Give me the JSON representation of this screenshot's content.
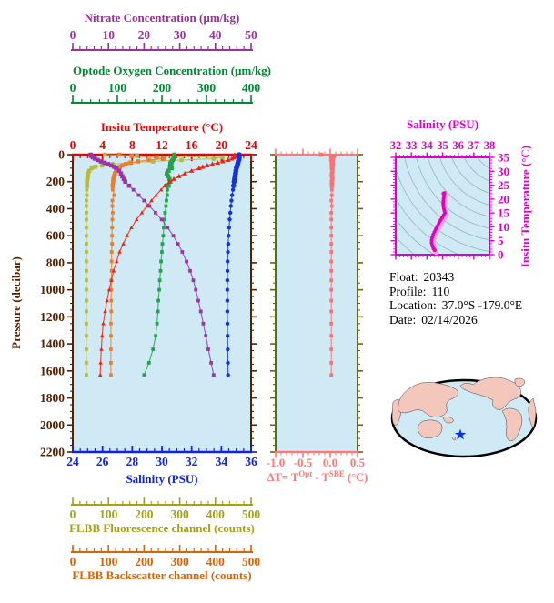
{
  "page": {
    "background": "#ffffff",
    "plot_background": "#cfe9f5"
  },
  "float_info": {
    "lines": [
      {
        "label": "Float:",
        "value": "20343"
      },
      {
        "label": "Profile:",
        "value": "110"
      },
      {
        "label": "Location:",
        "value": "37.0°S -179.0°E"
      },
      {
        "label": "Date:",
        "value": "02/14/2026"
      }
    ]
  },
  "axes": {
    "nitrate": {
      "title": "Nitrate Concentration (µm/kg)",
      "color": "#993399",
      "min": 0,
      "max": 50,
      "ticks": [
        0,
        10,
        20,
        30,
        40,
        50
      ],
      "minor_step": 2
    },
    "oxygen": {
      "title": "Optode Oxygen Concentration (µm/kg)",
      "color": "#008833",
      "min": 0,
      "max": 400,
      "ticks": [
        0,
        100,
        200,
        300,
        400
      ],
      "minor_step": 20
    },
    "temperature": {
      "title": "Insitu Temperature (°C)",
      "color": "#ee0000",
      "min": 0,
      "max": 24,
      "ticks": [
        0,
        4,
        8,
        12,
        16,
        20,
        24
      ],
      "minor_step": 1
    },
    "pressure": {
      "title": "Pressure (decibar)",
      "color": "#552200",
      "min": 0,
      "max": 2200,
      "ticks": [
        0,
        200,
        400,
        600,
        800,
        1000,
        1200,
        1400,
        1600,
        1800,
        2000,
        2200
      ],
      "minor_step": 50
    },
    "salinity": {
      "title": "Salinity (PSU)",
      "color": "#1122ee",
      "min": 24,
      "max": 36,
      "ticks": [
        24,
        26,
        28,
        30,
        32,
        34,
        36
      ],
      "minor_step": 0.5
    },
    "fluorescence": {
      "title": "FLBB Fluorescence channel (counts)",
      "color": "#a3a316",
      "min": 0,
      "max": 500,
      "ticks": [
        0,
        100,
        200,
        300,
        400,
        500
      ],
      "minor_step": 20
    },
    "backscatter": {
      "title": "FLBB Backscatter channel (counts)",
      "color": "#dd6200",
      "min": 0,
      "max": 500,
      "ticks": [
        0,
        100,
        200,
        300,
        400,
        500
      ],
      "minor_step": 20
    },
    "delta_t": {
      "title_pre": "ΔT= T",
      "title_sup1": "Opt",
      "title_mid": " - T",
      "title_sup2": "SBE",
      "title_post": " (°C)",
      "color": "#ff7777",
      "min": -1.0,
      "max": 0.5,
      "ticks": [
        {
          "v": -1.0,
          "l": "-1.0"
        },
        {
          "v": -0.5,
          "l": "-0.5"
        },
        {
          "v": 0.0,
          "l": "0.0"
        },
        {
          "v": 0.5,
          "l": "0.5"
        }
      ],
      "minor_step": 0.1,
      "frame_color": "#5e6b10"
    },
    "ts_salinity": {
      "title": "Salinity (PSU)",
      "color": "#dd00cc",
      "min": 32,
      "max": 38,
      "ticks": [
        32,
        33,
        34,
        35,
        36,
        37,
        38
      ],
      "minor_step": 0.25
    },
    "ts_temperature": {
      "title": "Insitu Temperature (°C)",
      "color": "#dd00cc",
      "min": 0,
      "max": 35,
      "ticks": [
        0,
        5,
        10,
        15,
        20,
        25,
        30,
        35
      ],
      "minor_step": 1
    }
  },
  "chart_data": [
    {
      "id": "main-profile-plot",
      "type": "line",
      "orientation": "vertical-profile",
      "ylabel": "Pressure (decibar)",
      "ylim": [
        0,
        2200
      ],
      "grid": false,
      "pressures": [
        0,
        10,
        20,
        30,
        40,
        50,
        60,
        70,
        80,
        90,
        100,
        120,
        140,
        160,
        180,
        200,
        230,
        260,
        300,
        340,
        380,
        430,
        480,
        540,
        600,
        660,
        720,
        790,
        860,
        930,
        1000,
        1080,
        1160,
        1250,
        1340,
        1440,
        1540,
        1630
      ],
      "series": [
        {
          "name": "FLBB Fluorescence channel (counts)",
          "color": "#b9b93e",
          "marker": "square",
          "xmin": 0,
          "xmax": 500,
          "values": [
            90,
            180,
            420,
            395,
            305,
            225,
            160,
            112,
            82,
            63,
            53,
            46,
            43,
            42,
            41,
            40,
            40,
            39,
            39,
            38,
            38,
            38,
            38,
            38,
            38,
            38,
            38,
            38,
            38,
            38,
            38,
            38,
            38,
            38,
            38,
            38,
            38,
            38
          ]
        },
        {
          "name": "FLBB Backscatter channel (counts)",
          "color": "#ee7d2a",
          "marker": "square",
          "xmin": 0,
          "xmax": 500,
          "values": [
            130,
            165,
            235,
            255,
            213,
            183,
            163,
            149,
            139,
            132,
            127,
            121,
            118,
            116,
            114,
            113,
            112,
            112,
            116,
            111,
            111,
            112,
            111,
            110,
            110,
            110,
            109,
            109,
            109,
            108,
            108,
            108,
            108,
            107,
            107,
            107,
            107,
            107
          ]
        },
        {
          "name": "Optode Oxygen Concentration (µm/kg)",
          "color": "#23a34b",
          "marker": "square",
          "xmin": 0,
          "xmax": 400,
          "values": [
            228,
            228,
            227,
            226,
            224,
            222,
            220,
            219,
            221,
            218,
            222,
            215,
            211,
            214,
            217,
            219,
            215,
            212,
            212,
            210,
            209,
            207,
            206,
            204,
            203,
            201,
            200,
            198,
            197,
            195,
            194,
            192,
            191,
            189,
            186,
            180,
            171,
            160
          ]
        },
        {
          "name": "Nitrate Concentration (µm/kg)",
          "color": "#9a35a8",
          "marker": "square",
          "xmin": 0,
          "xmax": 50,
          "values": [
            5.0,
            5.2,
            5.6,
            6.2,
            7.0,
            7.9,
            8.9,
            9.9,
            10.8,
            11.6,
            12.2,
            13.0,
            13.5,
            13.9,
            14.3,
            14.7,
            15.8,
            17.0,
            18.5,
            20.0,
            21.5,
            23.2,
            24.9,
            26.6,
            28.2,
            29.5,
            30.7,
            31.9,
            32.9,
            33.8,
            34.5,
            35.2,
            35.9,
            36.6,
            37.3,
            38.0,
            38.8,
            39.5
          ]
        },
        {
          "name": "Insitu Temperature (°C)",
          "color": "#ee2211",
          "marker": "triangle",
          "xmin": 0,
          "xmax": 24,
          "values": [
            21.8,
            21.8,
            21.7,
            21.4,
            20.9,
            20.2,
            19.5,
            18.8,
            18.1,
            17.5,
            17.0,
            16.0,
            15.1,
            14.3,
            13.6,
            13.0,
            12.4,
            11.9,
            11.2,
            10.6,
            10.0,
            9.3,
            8.6,
            7.9,
            7.3,
            6.8,
            6.3,
            5.9,
            5.5,
            5.2,
            4.9,
            4.6,
            4.35,
            4.1,
            3.95,
            3.85,
            3.75,
            3.7
          ]
        },
        {
          "name": "Salinity (PSU)",
          "color": "#1530e8",
          "marker": "circle",
          "xmin": 24,
          "xmax": 36,
          "values": [
            35.2,
            35.2,
            35.2,
            35.19,
            35.17,
            35.14,
            35.12,
            35.1,
            35.07,
            35.04,
            35.01,
            34.98,
            34.95,
            34.92,
            34.89,
            34.86,
            34.82,
            34.78,
            34.72,
            34.68,
            34.64,
            34.6,
            34.56,
            34.52,
            34.49,
            34.46,
            34.44,
            34.42,
            34.41,
            34.4,
            34.4,
            34.4,
            34.4,
            34.41,
            34.42,
            34.43,
            34.44,
            34.45
          ]
        }
      ]
    },
    {
      "id": "delta-t-plot",
      "type": "line",
      "xlim": [
        -1.0,
        0.5
      ],
      "ylim": [
        0,
        2200
      ],
      "pressures": [
        0,
        10,
        20,
        30,
        40,
        50,
        60,
        70,
        80,
        90,
        100,
        120,
        140,
        160,
        180,
        200,
        230,
        260,
        300,
        340,
        380,
        430,
        480,
        540,
        600,
        660,
        720,
        790,
        860,
        930,
        1000,
        1080,
        1160,
        1250,
        1340,
        1440,
        1540,
        1630
      ],
      "series": [
        {
          "name": "delta-T",
          "color": "#ff7070",
          "marker": "square",
          "xmin": -1.0,
          "xmax": 0.5,
          "values": [
            -0.17,
            0.07,
            0.02,
            0.05,
            0.02,
            0.04,
            0.03,
            0.05,
            0.03,
            0.04,
            0.03,
            0.04,
            0.03,
            0.03,
            0.04,
            0.03,
            0.03,
            0.03,
            0.03,
            0.02,
            0.03,
            0.02,
            0.02,
            0.02,
            0.02,
            0.02,
            0.02,
            0.02,
            0.02,
            0.02,
            0.02,
            0.02,
            0.02,
            0.02,
            0.02,
            0.02,
            0.02,
            0.02
          ]
        }
      ]
    },
    {
      "id": "ts-diagram",
      "type": "scatter",
      "xlabel": "Salinity (PSU)",
      "ylabel": "Insitu Temperature (°C)",
      "xlim": [
        32,
        38
      ],
      "ylim": [
        0,
        35
      ],
      "contours": "density isolines",
      "series": [
        {
          "name": "T-S profile",
          "color": "#e800b8",
          "shadow_color": "#ffa0d8",
          "points": [
            [
              34.5,
              1.6
            ],
            [
              34.42,
              2.2
            ],
            [
              34.35,
              3.2
            ],
            [
              34.3,
              4.2
            ],
            [
              34.3,
              5.2
            ],
            [
              34.34,
              6.2
            ],
            [
              34.4,
              7.2
            ],
            [
              34.48,
              8.2
            ],
            [
              34.57,
              9.2
            ],
            [
              34.66,
              10.2
            ],
            [
              34.76,
              11.3
            ],
            [
              34.87,
              12.4
            ],
            [
              34.97,
              13.3
            ],
            [
              35.07,
              14.2
            ],
            [
              35.15,
              15.0
            ],
            [
              35.12,
              15.8
            ],
            [
              35.08,
              16.6
            ],
            [
              35.05,
              17.5
            ],
            [
              35.04,
              18.4
            ],
            [
              35.05,
              19.3
            ],
            [
              35.07,
              20.2
            ],
            [
              35.1,
              21.0
            ],
            [
              35.1,
              21.7
            ],
            [
              35.06,
              22.0
            ],
            [
              35.12,
              22.2
            ]
          ]
        }
      ]
    }
  ],
  "map": {
    "projection": "global-ellipse",
    "ocean": "#cfe9f5",
    "land": "#f4c7bd",
    "outline": "#000000",
    "marker": "star",
    "marker_color": "#0033ee",
    "contour_color": "#96b4bc"
  }
}
